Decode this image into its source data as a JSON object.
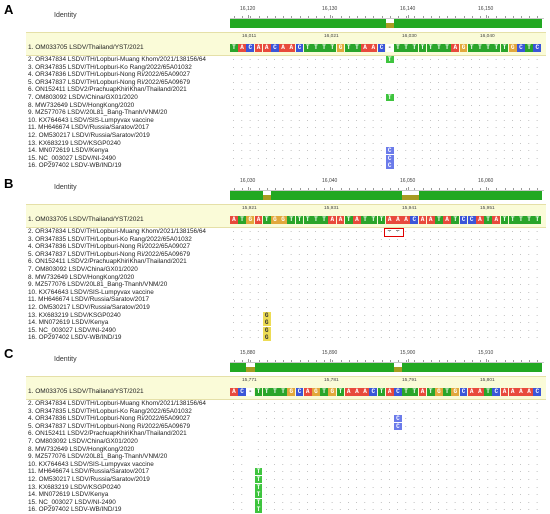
{
  "panels": [
    {
      "label": "A",
      "identity_label": "Identity",
      "ruler": [
        "16,120",
        "16,130",
        "16,140",
        "16,150"
      ],
      "ref_positions": [
        "16,011",
        "16,021",
        "16,030",
        "16,040"
      ],
      "ref_sequence": "TACAACAACTTTTGTTAAC-TTTTTTTAGTTTTTGCTC",
      "variants": [
        {
          "row": 2,
          "col": 19,
          "base": "T"
        },
        {
          "row": 7,
          "col": 19,
          "base": "T"
        },
        {
          "row": 14,
          "col": 19,
          "base": "C"
        },
        {
          "row": 15,
          "col": 19,
          "base": "C"
        },
        {
          "row": 16,
          "col": 19,
          "base": "C"
        }
      ],
      "dash_cols": [
        19
      ]
    },
    {
      "label": "B",
      "identity_label": "Identity",
      "ruler": [
        "16,030",
        "16,040",
        "16,050",
        "16,060"
      ],
      "ref_positions": [
        "15,921",
        "15,931",
        "15,941",
        "15,951"
      ],
      "ref_sequence": "ATGATGGTTTTTAATATTTAAACAATATCCATATTTTT",
      "variants": [
        {
          "row": 13,
          "col": 4,
          "base": "G"
        },
        {
          "row": 14,
          "col": 4,
          "base": "G"
        },
        {
          "row": 15,
          "col": 4,
          "base": "G"
        },
        {
          "row": 16,
          "col": 4,
          "base": "G"
        }
      ],
      "dash_cols": [
        5
      ],
      "gap_chars": [
        "–",
        "–"
      ]
    },
    {
      "label": "C",
      "identity_label": "Identity",
      "ruler": [
        "15,880",
        "15,890",
        "15,900",
        "15,910"
      ],
      "ref_positions": [
        "15,771",
        "15,781",
        "15,791",
        "15,801"
      ],
      "ref_sequence": "AC-TTTTGCAGTGTAAACTACTTATGTGCAATCAAAAC",
      "variants": [
        {
          "row": 4,
          "col": 20,
          "base": "C"
        },
        {
          "row": 5,
          "col": 20,
          "base": "C"
        },
        {
          "row": 11,
          "col": 3,
          "base": "T"
        },
        {
          "row": 12,
          "col": 3,
          "base": "T"
        },
        {
          "row": 13,
          "col": 3,
          "base": "T"
        },
        {
          "row": 14,
          "col": 3,
          "base": "T"
        },
        {
          "row": 15,
          "col": 3,
          "base": "T"
        },
        {
          "row": 16,
          "col": 3,
          "base": "T"
        }
      ],
      "dash_cols": [
        2
      ]
    }
  ],
  "sequence_names": [
    "1. OM033705 LSDV/Thailand/YST/2021",
    "2. OR347834 LSDV/TH/Lopburi-Muang Khom/2021/138156/64",
    "3. OR347835 LSDV/TH/Lopburi-Ko Rang/2022/65A01032",
    "4. OR347836 LSDV/TH/Lopburi-Nong Ri/2022/65A09027",
    "5. OR347837 LSDV/TH/Lopburi-Nong Ri/2022/65A09679",
    "6. ON152411 LSDV2/PrachuapKhiriKhan/Thailand/2021",
    "7. OM803092 LSDV/China/GX01/2020",
    "8. MW732649 LSDV/HongKong/2020",
    "9. MZ577076 LSDV/20L81_Bang-Thanh/VNM/20",
    "10. KX764643 LSDV/SIS-Lumpyvax vaccine",
    "11. MH646674 LSDV/Russia/Saratov/2017",
    "12. OM530217 LSDV/Russia/Saratov/2019",
    "13. KX683219 LSDV/KSGP0240",
    "14. MN072619 LSDV/Kenya",
    "15. NC_003027 LSDV/NI-2490",
    "16. OP297402 LSDV-WB/IND/19"
  ],
  "colors": {
    "A": "#e84a3c",
    "C": "#3b56d8",
    "G": "#e2a83c",
    "T": "#2aa52a",
    "identity_green": "#22a822",
    "identity_olive": "#a89c22",
    "variant_T": "#3ec43e",
    "variant_C": "#6b7bea",
    "variant_G": "#eddc55",
    "ref_bg": "#fafbd8"
  }
}
